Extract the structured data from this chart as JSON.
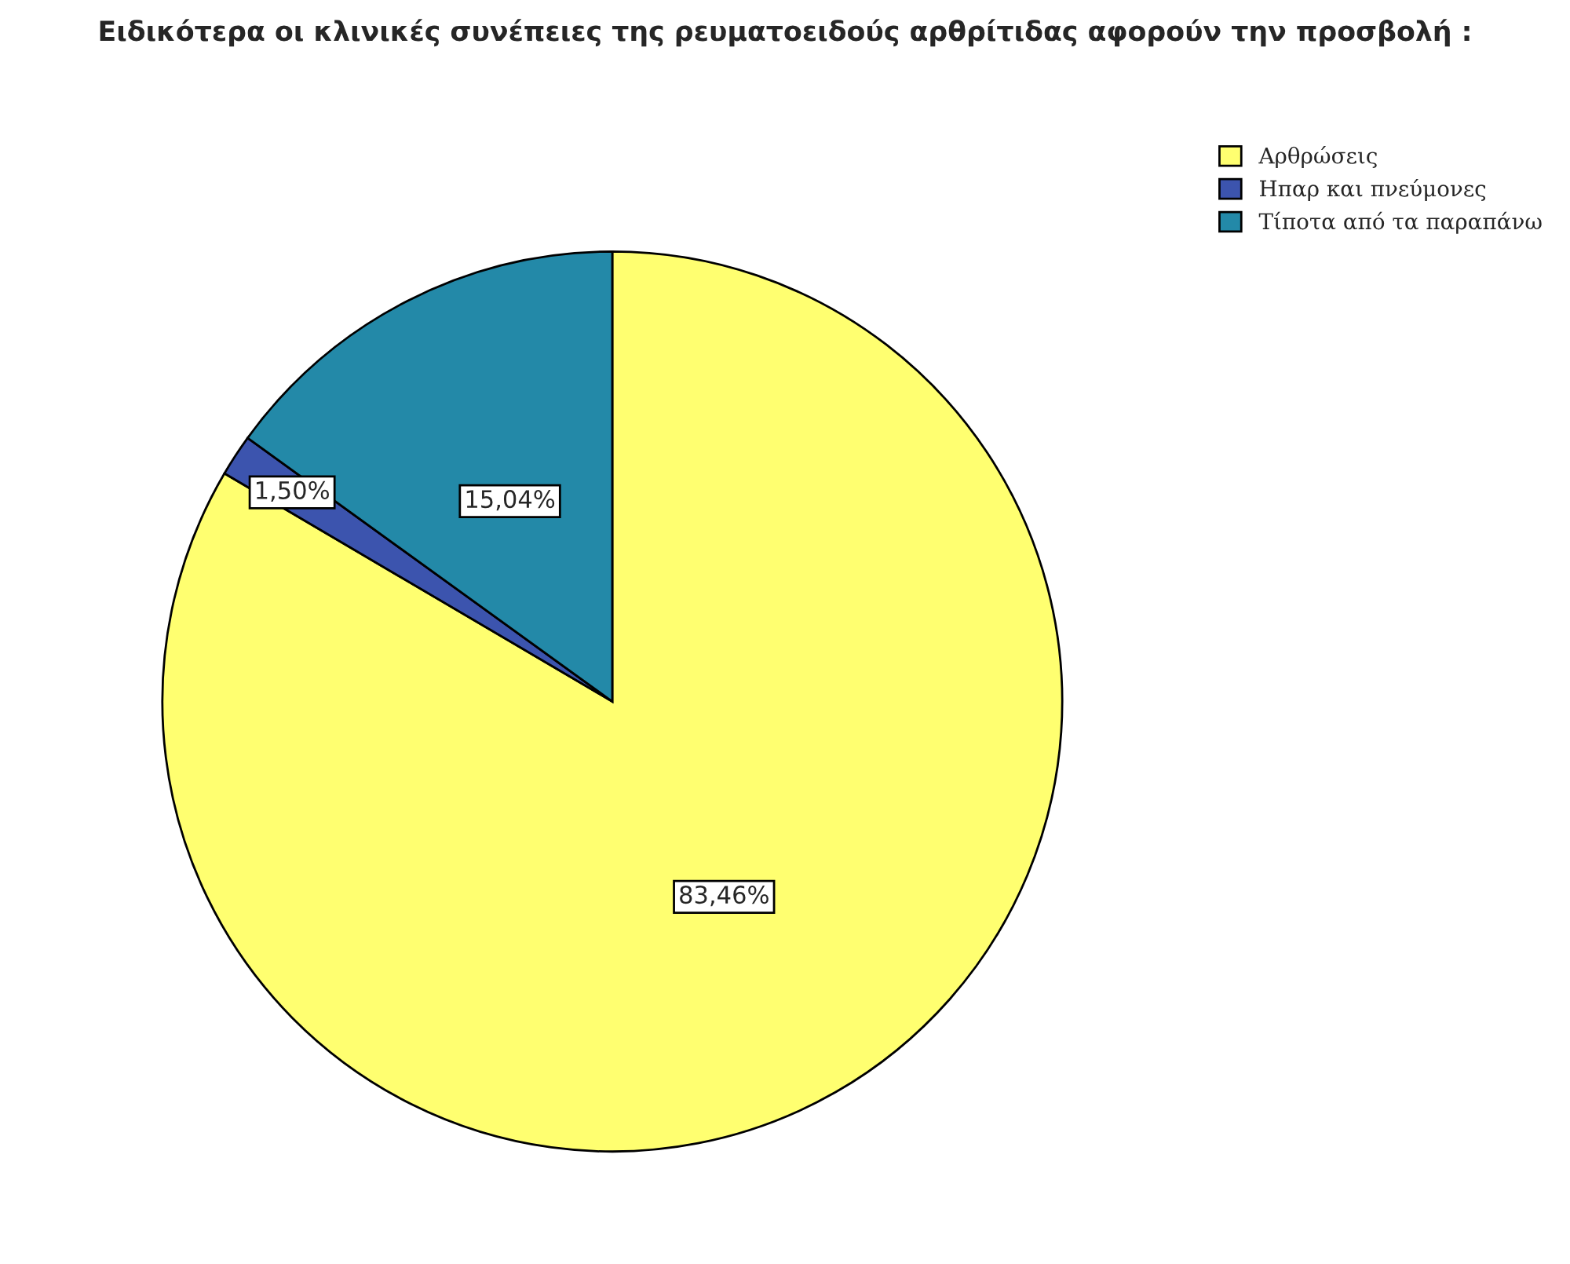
{
  "chart_data": {
    "type": "pie",
    "title": "Ειδικότερα οι κλινικές συνέπειες της ρευματοειδούς αρθρίτιδας αφορούν την προσβολή :",
    "categories": [
      "Αρθρώσεις",
      "Ηπαρ και πνεύμονες",
      "Τίποτα από τα παραπάνω"
    ],
    "values": [
      83.46,
      1.5,
      15.04
    ],
    "colors": [
      "#ffff70",
      "#3c54ae",
      "#2389a8"
    ],
    "value_labels": [
      "83,46%",
      "1,50%",
      "15,04%"
    ],
    "legend": "top right"
  }
}
